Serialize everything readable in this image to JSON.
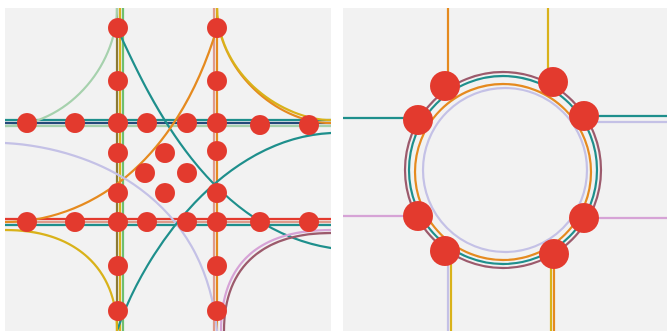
{
  "diagrams": [
    {
      "id": "grid-layout",
      "layout": "grid",
      "node_color": "#e33a2e"
    },
    {
      "id": "circle-layout",
      "layout": "circle",
      "node_color": "#e33a2e"
    }
  ],
  "line_colors": {
    "teal": "#1e8f8c",
    "orange": "#e58a1f",
    "yellow": "#d9b21a",
    "mauve": "#9c5a6c",
    "lavender": "#c4c1e6",
    "pink": "#d6a3d6",
    "mint": "#a6d1ad",
    "olive": "#8d7a35",
    "navy": "#244a7a",
    "salmon": "#e09a8a",
    "red": "#e33a2e",
    "green": "#6fbf6f"
  }
}
